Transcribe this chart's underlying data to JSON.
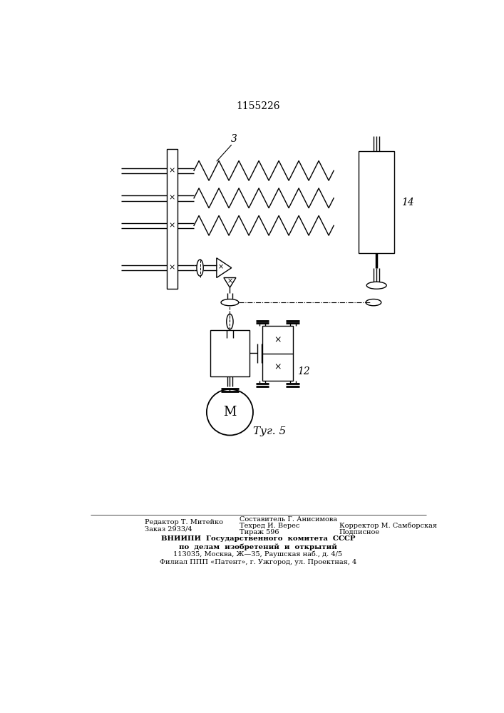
{
  "title": "1155226",
  "fig_label": "Τуг. 5",
  "background_color": "#ffffff",
  "line_color": "#000000",
  "label_3": "3",
  "label_14": "14",
  "label_12": "12",
  "label_M": "M",
  "editor_left1": "Редактор Т. Митейко",
  "editor_left2": "Заказ 2933/4",
  "editor_mid1": "Составитель Г. Анисимова",
  "editor_mid2": "Техред И. Верес",
  "editor_mid3": "Тираж 596",
  "editor_right1": "Корректор М. Самборская",
  "editor_right2": "Подписное",
  "vniipи1": "ВНИИПИ  Государственного  комитета  СССР",
  "vniipи2": "по  делам  изобретений  и  открытий",
  "vniipи3": "113035, Москва, Ж—35, Раушская наб., д. 4/5",
  "vniipи4": "Филиал ППП «Патент», г. Ужгород, ул. Проектная, 4"
}
